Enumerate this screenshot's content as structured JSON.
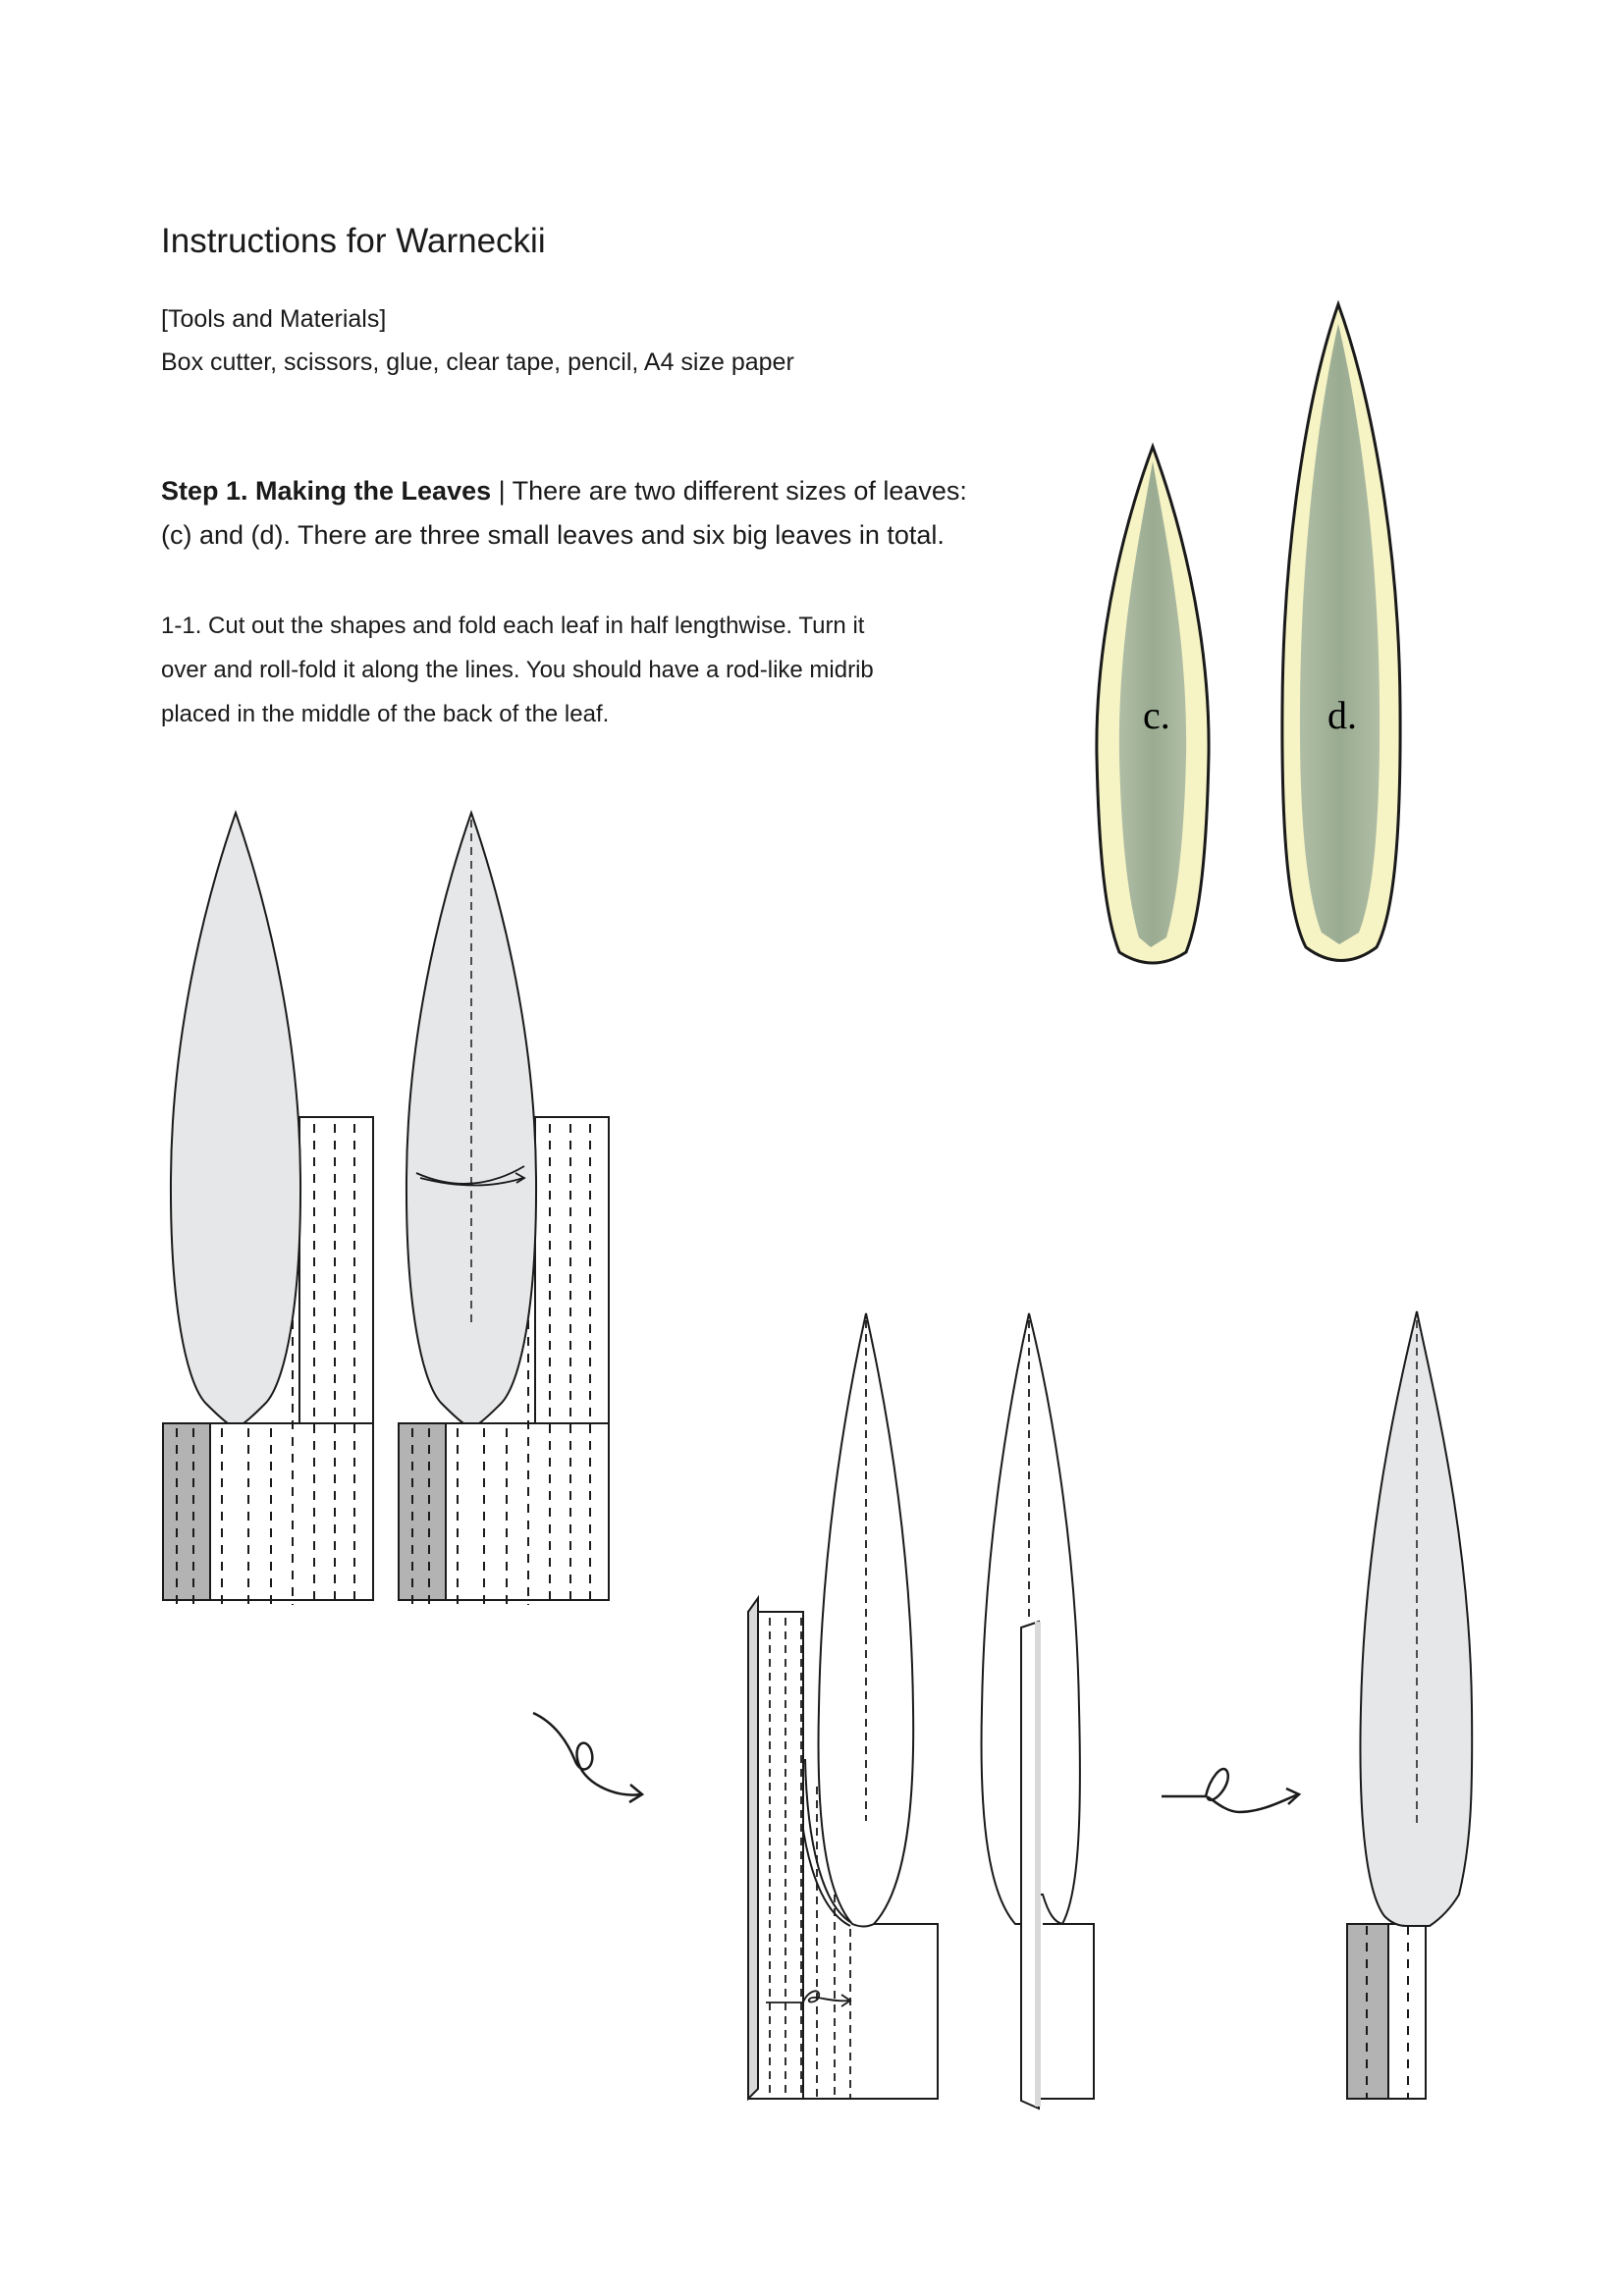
{
  "document": {
    "title": "Instructions for Warneckii",
    "tools_heading": "[Tools and Materials]",
    "tools_list": "Box cutter, scissors, glue, clear tape, pencil, A4 size paper",
    "step1": {
      "label": "Step 1. Making the Leaves",
      "separator": " | ",
      "text_line1": "There are two different sizes of leaves:",
      "text_line2": "(c) and (d). There are three small leaves and six big leaves in total."
    },
    "substep_1_1": {
      "line1": "1-1. Cut out the shapes and fold each leaf in half lengthwise. Turn it",
      "line2": "over and roll-fold it along the lines. You should have a rod-like midrib",
      "line3": "placed in the middle of the back of the leaf."
    },
    "leaf_labels": {
      "small": "c.",
      "big": "d."
    }
  },
  "colors": {
    "text": "#1a1a1a",
    "leaf_grey": "#e6e7e8",
    "tab_dark": "#b3b3b3",
    "leaf_cream": "#f6f3c4",
    "leaf_green": "#9fb09a",
    "outline": "#1a1a1a"
  }
}
